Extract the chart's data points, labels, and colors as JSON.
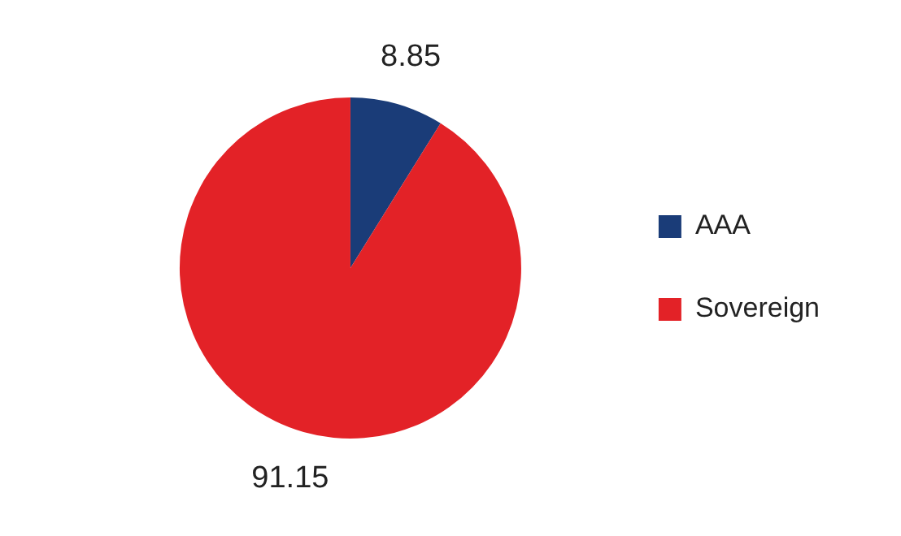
{
  "chart_data": {
    "type": "pie",
    "categories": [
      "AAA",
      "Sovereign"
    ],
    "values": [
      8.85,
      91.15
    ],
    "colors": [
      "#1a3c78",
      "#e32227"
    ],
    "data_labels": true,
    "legend": "right"
  }
}
